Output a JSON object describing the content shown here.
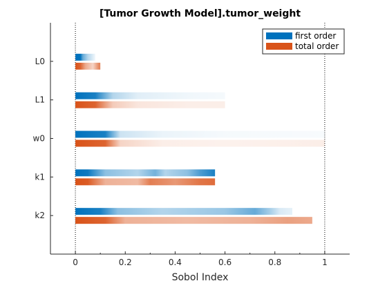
{
  "chart_data": {
    "type": "bar",
    "orientation": "horizontal",
    "title": "[Tumor Growth Model].tumor_weight",
    "xlabel": "Sobol Index",
    "ylabel": "",
    "xlim": [
      -0.1,
      1.1
    ],
    "xticks": [
      "0",
      "0.2",
      "0.4",
      "0.6",
      "0.8",
      "1"
    ],
    "xtick_values": [
      0,
      0.2,
      0.4,
      0.6,
      0.8,
      1
    ],
    "reference_lines": [
      0,
      1
    ],
    "grid": false,
    "legend_location": "top-right",
    "categories": [
      "L0",
      "L1",
      "w0",
      "k1",
      "k2"
    ],
    "series": [
      {
        "name": "first order",
        "color": "#0072bd",
        "values": [
          0.08,
          0.6,
          1.0,
          0.56,
          0.87
        ],
        "gradient": [
          [
            {
              "x": 0.0,
              "o": 1.0
            },
            {
              "x": 0.02,
              "o": 1.0
            },
            {
              "x": 0.03,
              "o": 0.6
            },
            {
              "x": 0.05,
              "o": 0.3
            },
            {
              "x": 0.08,
              "o": 0.05
            }
          ],
          [
            {
              "x": 0.0,
              "o": 1.0
            },
            {
              "x": 0.08,
              "o": 0.9
            },
            {
              "x": 0.15,
              "o": 0.3
            },
            {
              "x": 0.25,
              "o": 0.12
            },
            {
              "x": 0.45,
              "o": 0.06
            },
            {
              "x": 0.6,
              "o": 0.04
            }
          ],
          [
            {
              "x": 0.0,
              "o": 1.0
            },
            {
              "x": 0.12,
              "o": 0.9
            },
            {
              "x": 0.18,
              "o": 0.2
            },
            {
              "x": 0.35,
              "o": 0.08
            },
            {
              "x": 0.6,
              "o": 0.04
            },
            {
              "x": 1.0,
              "o": 0.03
            }
          ],
          [
            {
              "x": 0.0,
              "o": 1.0
            },
            {
              "x": 0.05,
              "o": 0.95
            },
            {
              "x": 0.12,
              "o": 0.45
            },
            {
              "x": 0.25,
              "o": 0.3
            },
            {
              "x": 0.32,
              "o": 0.55
            },
            {
              "x": 0.36,
              "o": 0.3
            },
            {
              "x": 0.45,
              "o": 0.45
            },
            {
              "x": 0.5,
              "o": 0.7
            },
            {
              "x": 0.56,
              "o": 0.9
            }
          ],
          [
            {
              "x": 0.0,
              "o": 1.0
            },
            {
              "x": 0.1,
              "o": 0.9
            },
            {
              "x": 0.17,
              "o": 0.45
            },
            {
              "x": 0.35,
              "o": 0.3
            },
            {
              "x": 0.6,
              "o": 0.4
            },
            {
              "x": 0.72,
              "o": 0.6
            },
            {
              "x": 0.78,
              "o": 0.35
            },
            {
              "x": 0.82,
              "o": 0.15
            },
            {
              "x": 0.87,
              "o": 0.1
            }
          ]
        ]
      },
      {
        "name": "total order",
        "color": "#d95319",
        "values": [
          0.1,
          0.6,
          1.0,
          0.56,
          0.95
        ],
        "gradient": [
          [
            {
              "x": 0.0,
              "o": 1.0
            },
            {
              "x": 0.02,
              "o": 0.9
            },
            {
              "x": 0.04,
              "o": 0.5
            },
            {
              "x": 0.07,
              "o": 0.25
            },
            {
              "x": 0.095,
              "o": 0.7
            },
            {
              "x": 0.1,
              "o": 0.7
            }
          ],
          [
            {
              "x": 0.0,
              "o": 1.0
            },
            {
              "x": 0.08,
              "o": 0.9
            },
            {
              "x": 0.15,
              "o": 0.3
            },
            {
              "x": 0.25,
              "o": 0.15
            },
            {
              "x": 0.45,
              "o": 0.1
            },
            {
              "x": 0.6,
              "o": 0.1
            }
          ],
          [
            {
              "x": 0.0,
              "o": 1.0
            },
            {
              "x": 0.12,
              "o": 0.9
            },
            {
              "x": 0.18,
              "o": 0.25
            },
            {
              "x": 0.35,
              "o": 0.1
            },
            {
              "x": 0.6,
              "o": 0.08
            },
            {
              "x": 1.0,
              "o": 0.1
            }
          ],
          [
            {
              "x": 0.0,
              "o": 1.0
            },
            {
              "x": 0.05,
              "o": 0.95
            },
            {
              "x": 0.12,
              "o": 0.45
            },
            {
              "x": 0.25,
              "o": 0.4
            },
            {
              "x": 0.3,
              "o": 0.75
            },
            {
              "x": 0.4,
              "o": 0.6
            },
            {
              "x": 0.5,
              "o": 0.8
            },
            {
              "x": 0.56,
              "o": 0.85
            }
          ],
          [
            {
              "x": 0.0,
              "o": 1.0
            },
            {
              "x": 0.12,
              "o": 0.9
            },
            {
              "x": 0.2,
              "o": 0.45
            },
            {
              "x": 0.45,
              "o": 0.4
            },
            {
              "x": 0.7,
              "o": 0.45
            },
            {
              "x": 0.85,
              "o": 0.55
            },
            {
              "x": 0.95,
              "o": 0.5
            }
          ]
        ]
      }
    ]
  }
}
